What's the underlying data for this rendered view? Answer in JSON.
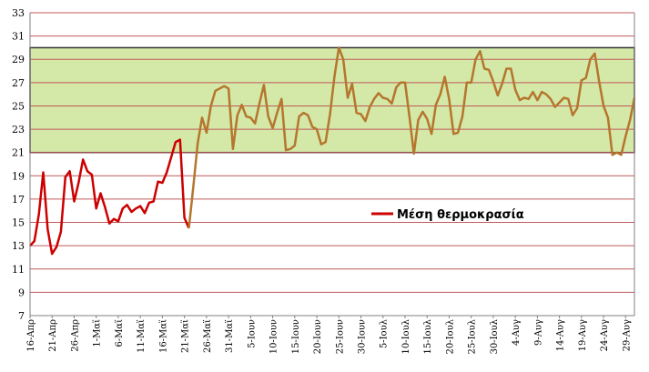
{
  "chart_data": {
    "type": "line",
    "title": "",
    "xlabel": "",
    "ylabel": "",
    "ylim": [
      7,
      33
    ],
    "yticks": [
      7,
      9,
      11,
      13,
      15,
      17,
      19,
      21,
      23,
      25,
      27,
      29,
      31,
      33
    ],
    "grid": true,
    "legend_position": "center-right",
    "highlight_band": {
      "from": 21,
      "to": 30,
      "color": "#d4e8a8",
      "border": "#333333"
    },
    "xtick_labels": [
      "16-Απρ",
      "21-Απρ",
      "26-Απρ",
      "1-Μαϊ",
      "6-Μαϊ",
      "11-Μαϊ",
      "16-Μαϊ",
      "21-Μαϊ",
      "26-Μαϊ",
      "31-Μαϊ",
      "5-Ιουν",
      "10-Ιουν",
      "15-Ιουν",
      "20-Ιουν",
      "25-Ιουν",
      "30-Ιουν",
      "5-Ιουλ",
      "10-Ιουλ",
      "15-Ιουλ",
      "20-Ιουλ",
      "25-Ιουλ",
      "30-Ιουλ",
      "4-Αυγ",
      "9-Αυγ",
      "14-Αυγ",
      "19-Αυγ",
      "24-Αυγ",
      "29-Αυγ"
    ],
    "series": [
      {
        "name": "Μέση θερμοκρασία",
        "color_early": "#cc0000",
        "color_late": "#b5762e",
        "color_switch_index": 36,
        "values": [
          13.0,
          13.4,
          15.7,
          19.3,
          14.4,
          12.3,
          12.9,
          14.2,
          18.9,
          19.4,
          16.8,
          18.4,
          20.4,
          19.4,
          19.1,
          16.2,
          17.5,
          16.3,
          14.9,
          15.3,
          15.1,
          16.2,
          16.5,
          15.9,
          16.2,
          16.4,
          15.8,
          16.7,
          16.8,
          18.5,
          18.4,
          19.3,
          20.6,
          21.9,
          22.1,
          15.4,
          14.5,
          18.0,
          21.8,
          24.0,
          22.7,
          25.0,
          26.3,
          26.5,
          26.7,
          26.5,
          21.3,
          24.2,
          25.1,
          24.1,
          24.0,
          23.5,
          25.2,
          26.8,
          24.1,
          23.1,
          24.4,
          25.6,
          21.2,
          21.3,
          21.6,
          24.1,
          24.4,
          24.2,
          23.2,
          23.0,
          21.7,
          21.9,
          24.3,
          27.5,
          30.0,
          29.0,
          25.7,
          26.9,
          24.4,
          24.3,
          23.7,
          24.9,
          25.6,
          26.1,
          25.7,
          25.6,
          25.2,
          26.6,
          27.0,
          27.0,
          24.1,
          20.9,
          23.8,
          24.5,
          23.9,
          22.6,
          25.1,
          26.0,
          27.5,
          25.6,
          22.6,
          22.7,
          24.1,
          27.0,
          27.0,
          29.0,
          29.7,
          28.2,
          28.1,
          27.1,
          25.9,
          26.9,
          28.2,
          28.2,
          26.4,
          25.5,
          25.7,
          25.6,
          26.2,
          25.5,
          26.2,
          26.0,
          25.6,
          24.9,
          25.3,
          25.7,
          25.6,
          24.2,
          24.8,
          27.2,
          27.4,
          29.0,
          29.5,
          27.1,
          25.0,
          24.0,
          20.8,
          21.0,
          20.8,
          22.4,
          23.8,
          25.7
        ]
      }
    ]
  }
}
